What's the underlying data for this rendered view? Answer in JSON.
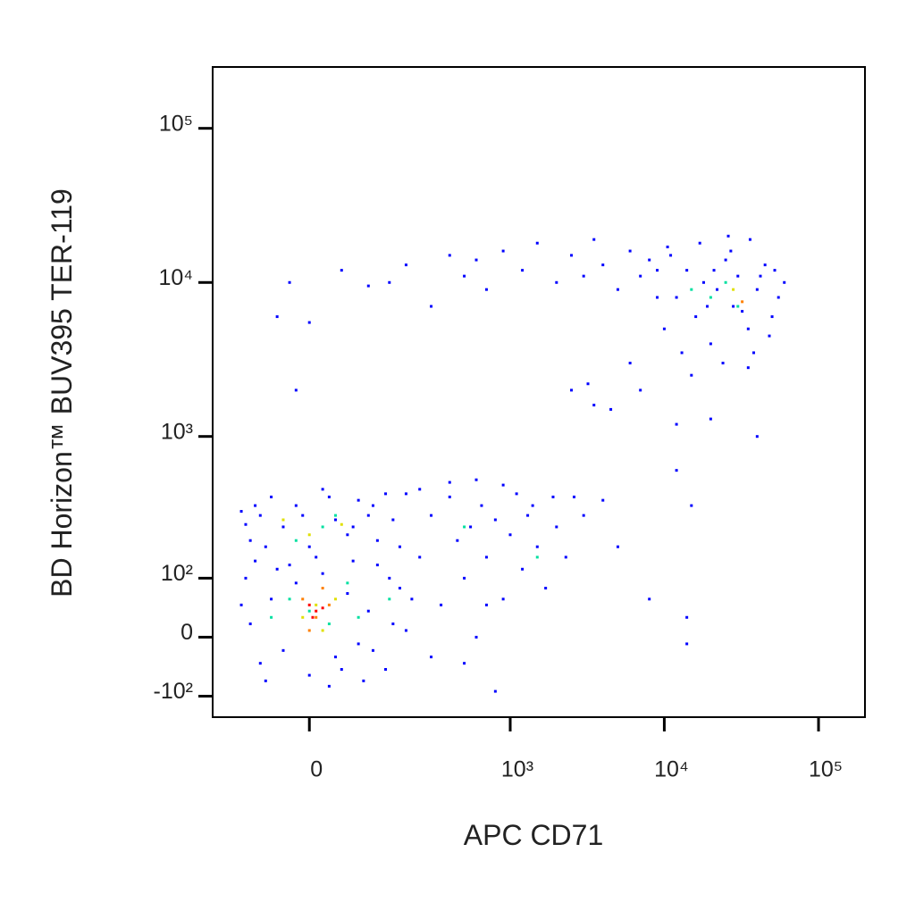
{
  "chart_data": {
    "type": "scatter",
    "x_label": "APC CD71",
    "y_label": "BD Horizon™ BUV395 TER-119",
    "xscale": "biexponential",
    "yscale": "biexponential",
    "xlim": [
      -200,
      200000
    ],
    "ylim": [
      -150,
      250000
    ],
    "xticks": [
      0,
      {
        "value": 1000,
        "label": "10³"
      },
      {
        "value": 10000,
        "label": "10⁴"
      },
      {
        "value": 100000,
        "label": "10⁵"
      }
    ],
    "yticks": [
      {
        "value": -100,
        "label": "-10²"
      },
      0,
      {
        "value": 100,
        "label": "10²"
      },
      {
        "value": 1000,
        "label": "10³"
      },
      {
        "value": 10000,
        "label": "10⁴"
      },
      {
        "value": 100000,
        "label": "10⁵"
      }
    ],
    "series": [
      {
        "color": "#0000ff",
        "x": [
          -100,
          -80,
          -60,
          -40,
          -20,
          0,
          20,
          40,
          60,
          80,
          100,
          120,
          140,
          160,
          180,
          -110,
          -90,
          -70,
          -30,
          10,
          30,
          70,
          90,
          110,
          150,
          200,
          220,
          -120,
          -50,
          50,
          -100,
          -80,
          -60,
          -40,
          -20,
          0,
          20,
          40,
          60,
          80,
          100,
          120,
          140,
          -110,
          -90,
          -70,
          -10,
          30,
          70,
          110,
          160,
          180,
          200,
          -120,
          250,
          300,
          350,
          400,
          450,
          500,
          550,
          600,
          650,
          700,
          800,
          900,
          1000,
          1100,
          1200,
          1300,
          1500,
          1700,
          2000,
          2300,
          2600,
          300,
          500,
          700,
          400,
          250,
          900,
          1400,
          1900,
          600,
          800,
          3000,
          4000,
          5000,
          8000,
          14000,
          14000,
          12000,
          15000,
          -50,
          -30,
          0,
          50,
          100,
          150,
          200,
          300,
          400,
          500,
          600,
          700,
          900,
          1200,
          1500,
          2000,
          2500,
          3000,
          3500,
          4000,
          5000,
          6000,
          7000,
          8000,
          9000,
          -20,
          2500,
          3200,
          3500,
          4500,
          6000,
          7000,
          10000,
          12000,
          14000,
          16000,
          18000,
          20000,
          22000,
          25000,
          28000,
          30000,
          35000,
          40000,
          45000,
          50000,
          55000,
          60000,
          11000,
          13000,
          15000,
          17000,
          19000,
          21000,
          24000,
          27000,
          32000,
          38000,
          42000,
          48000,
          52000,
          9000,
          10500,
          26000,
          36000,
          12000,
          20000,
          40000,
          35000
        ],
        "values": [
          20,
          -40,
          60,
          -20,
          90,
          -60,
          110,
          -30,
          70,
          -10,
          40,
          130,
          -50,
          20,
          80,
          100,
          140,
          -70,
          130,
          150,
          -80,
          140,
          -70,
          -20,
          100,
          10,
          60,
          50,
          120,
          -50,
          200,
          300,
          400,
          250,
          350,
          180,
          450,
          280,
          220,
          380,
          300,
          200,
          420,
          260,
          350,
          180,
          300,
          400,
          250,
          350,
          280,
          180,
          420,
          320,
          150,
          300,
          50,
          400,
          200,
          100,
          250,
          0,
          350,
          150,
          280,
          60,
          220,
          420,
          120,
          300,
          180,
          80,
          250,
          150,
          400,
          -30,
          -40,
          50,
          500,
          450,
          480,
          350,
          400,
          520,
          -90,
          300,
          380,
          180,
          60,
          30,
          -10,
          600,
          350,
          6000,
          10000,
          5500,
          12000,
          9500,
          10000,
          13000,
          7000,
          15000,
          11000,
          14000,
          9000,
          16000,
          12000,
          18000,
          10000,
          15000,
          11000,
          19000,
          13000,
          9000,
          16000,
          11000,
          14000,
          8000,
          2000,
          2000,
          2200,
          1600,
          1500,
          3000,
          2000,
          5000,
          8000,
          12000,
          6000,
          10000,
          4000,
          9000,
          14000,
          7000,
          11000,
          5000,
          9000,
          13000,
          6000,
          8000,
          10000,
          15000,
          3500,
          2500,
          18000,
          7000,
          12000,
          3000,
          16000,
          6500,
          3500,
          11000,
          4500,
          12000,
          12000,
          17000,
          20000,
          19000,
          1200,
          1300,
          1000,
          2800
        ]
      },
      {
        "color": "#00e0a0",
        "x": [
          0,
          30,
          -30,
          60,
          20,
          -20,
          80,
          40,
          150,
          -60,
          20000,
          25000,
          30000,
          15000,
          500,
          1500
        ],
        "values": [
          40,
          20,
          60,
          90,
          250,
          200,
          30,
          300,
          60,
          30,
          8000,
          10000,
          7000,
          9000,
          250,
          150
        ]
      },
      {
        "color": "#e0e000",
        "x": [
          10,
          -10,
          40,
          0,
          50,
          20,
          28000,
          -40
        ],
        "values": [
          50,
          30,
          60,
          220,
          260,
          10,
          9000,
          280
        ]
      },
      {
        "color": "#ff8000",
        "x": [
          10,
          30,
          -10,
          20,
          0,
          32000
        ],
        "values": [
          30,
          50,
          60,
          80,
          10,
          7500
        ]
      },
      {
        "color": "#ff0000",
        "x": [
          10,
          20,
          0,
          5
        ],
        "values": [
          40,
          45,
          50,
          30
        ]
      }
    ]
  }
}
